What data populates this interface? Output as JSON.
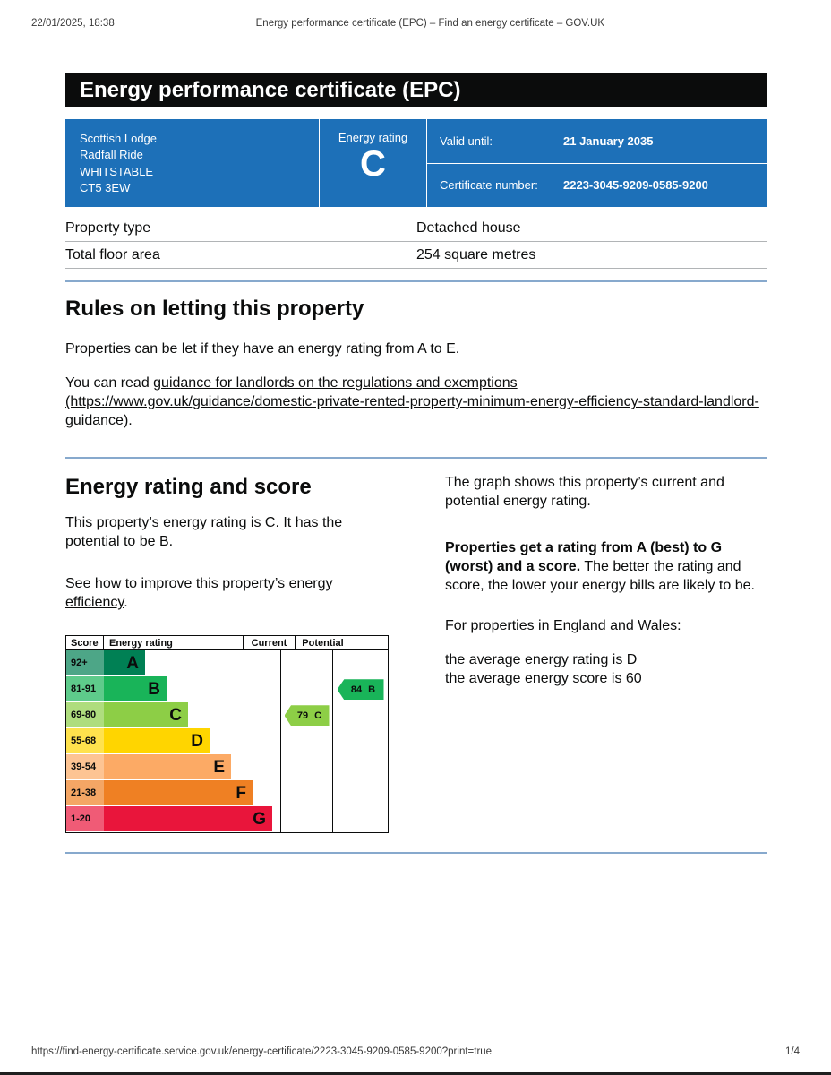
{
  "print_header": {
    "timestamp": "22/01/2025, 18:38",
    "document_title": "Energy performance certificate (EPC) – Find an energy certificate – GOV.UK"
  },
  "banner": {
    "title": "Energy performance certificate (EPC)"
  },
  "certificate": {
    "address_lines": [
      "Scottish Lodge",
      "Radfall Ride",
      "WHITSTABLE",
      "CT5 3EW"
    ],
    "energy_rating_label": "Energy rating",
    "energy_rating": "C",
    "valid_until_label": "Valid until:",
    "valid_until_value": "21 January 2035",
    "certificate_number_label": "Certificate number:",
    "certificate_number_value": "2223-3045-9209-0585-9200"
  },
  "summary": {
    "rows": [
      {
        "label": "Property type",
        "value": "Detached house"
      },
      {
        "label": "Total floor area",
        "value": "254 square metres"
      }
    ]
  },
  "rules_section": {
    "heading": "Rules on letting this property",
    "intro": "Properties can be let if they have an energy rating from A to E.",
    "read_prefix": "You can read ",
    "guidance_link": "guidance for landlords on the regulations and exemptions (https://www.gov.uk/guidance/domestic-private-rented-property-minimum-energy-efficiency-standard-landlord-guidance)",
    "read_suffix": "."
  },
  "rating_section": {
    "heading": "Energy rating and score",
    "summary_text": "This property’s energy rating is C. It has the potential to be B.",
    "improve_link": "See how to improve this property’s energy efficiency",
    "improve_suffix": ".",
    "graph_intro": "The graph shows this property’s current and potential energy rating.",
    "explain_bold": "Properties get a rating from A (best) to G (worst) and a score.",
    "explain_rest": " The better the rating and score, the lower your energy bills are likely to be.",
    "averages_intro": "For properties in England and Wales:",
    "average_rating": "the average energy rating is D",
    "average_score": "the average energy score is 60"
  },
  "chart_data": {
    "type": "epc-rating-bands",
    "title": "Energy rating and score",
    "headers": {
      "score": "Score",
      "rating": "Energy rating",
      "current": "Current",
      "potential": "Potential"
    },
    "bands": [
      {
        "score": "92+",
        "letter": "A",
        "color": "#008054",
        "score_color": "#4da687"
      },
      {
        "score": "81-91",
        "letter": "B",
        "color": "#19b459",
        "score_color": "#5ecb8b"
      },
      {
        "score": "69-80",
        "letter": "C",
        "color": "#8dce46",
        "score_color": "#afdd7e"
      },
      {
        "score": "55-68",
        "letter": "D",
        "color": "#ffd500",
        "score_color": "#ffe24d"
      },
      {
        "score": "39-54",
        "letter": "E",
        "color": "#fcaa65",
        "score_color": "#fdc493"
      },
      {
        "score": "21-38",
        "letter": "F",
        "color": "#ef8023",
        "score_color": "#f4a665"
      },
      {
        "score": "1-20",
        "letter": "G",
        "color": "#e9153b",
        "score_color": "#f05b76"
      }
    ],
    "current": {
      "score": "79",
      "letter": "C",
      "color": "#8dce46"
    },
    "potential": {
      "score": "84",
      "letter": "B",
      "color": "#19b459"
    }
  },
  "footer": {
    "url": "https://find-energy-certificate.service.gov.uk/energy-certificate/2223-3045-9209-0585-9200?print=true",
    "page_indicator": "1/4"
  }
}
